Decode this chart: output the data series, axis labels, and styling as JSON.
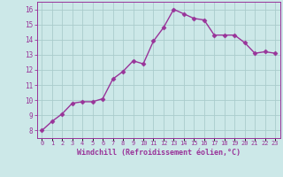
{
  "x": [
    0,
    1,
    2,
    3,
    4,
    5,
    6,
    7,
    8,
    9,
    10,
    11,
    12,
    13,
    14,
    15,
    16,
    17,
    18,
    19,
    20,
    21,
    22,
    23
  ],
  "y": [
    8.0,
    8.6,
    9.1,
    9.8,
    9.9,
    9.9,
    10.1,
    11.4,
    11.9,
    12.6,
    12.4,
    13.9,
    14.8,
    16.0,
    15.7,
    15.4,
    15.3,
    14.3,
    14.3,
    14.3,
    13.8,
    13.1,
    13.2,
    13.1
  ],
  "line_color": "#993399",
  "marker": "D",
  "markersize": 2.5,
  "linewidth": 1.0,
  "bg_color": "#cce8e8",
  "grid_color": "#aacccc",
  "xlabel": "Windchill (Refroidissement éolien,°C)",
  "xlabel_color": "#993399",
  "ylabel_ticks": [
    8,
    9,
    10,
    11,
    12,
    13,
    14,
    15,
    16
  ],
  "xtick_labels": [
    "0",
    "1",
    "2",
    "3",
    "4",
    "5",
    "6",
    "7",
    "8",
    "9",
    "10",
    "11",
    "12",
    "13",
    "14",
    "15",
    "16",
    "17",
    "18",
    "19",
    "20",
    "21",
    "22",
    "23"
  ],
  "ylim": [
    7.5,
    16.5
  ],
  "xlim": [
    -0.5,
    23.5
  ],
  "tick_color": "#993399",
  "spine_color": "#993399"
}
